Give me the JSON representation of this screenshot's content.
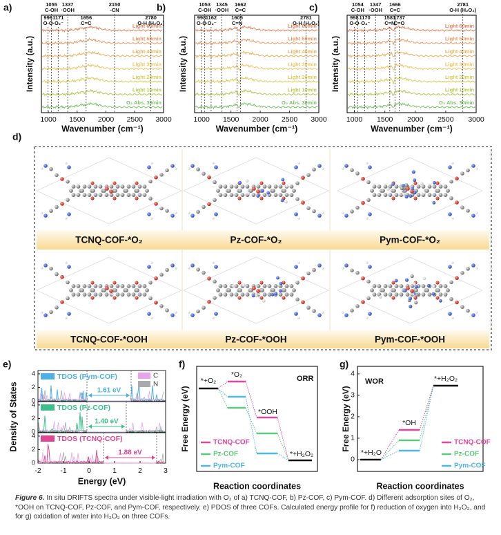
{
  "panels": {
    "a": {
      "label": "a)",
      "peaks": [
        {
          "wn": 996,
          "name": "O-O"
        },
        {
          "wn": 1055,
          "name": "C-OH"
        },
        {
          "wn": 1171,
          "name": "·O₂⁻"
        },
        {
          "wn": 1337,
          "name": "·OOH"
        },
        {
          "wn": 1656,
          "name": "C=C"
        },
        {
          "wn": 2150,
          "name": "-CN"
        },
        {
          "wn": 2780,
          "name": "O-H (H₂O₂)"
        }
      ]
    },
    "b": {
      "label": "b)",
      "peaks": [
        {
          "wn": 998,
          "name": "O-O"
        },
        {
          "wn": 1053,
          "name": "C-OH"
        },
        {
          "wn": 1162,
          "name": "·O₂⁻"
        },
        {
          "wn": 1345,
          "name": "·OOH"
        },
        {
          "wn": 1605,
          "name": "C=N"
        },
        {
          "wn": 1662,
          "name": "C=C"
        },
        {
          "wn": 2781,
          "name": "O-H (H₂O₂)"
        }
      ]
    },
    "c": {
      "label": "c)",
      "peaks": [
        {
          "wn": 998,
          "name": "O-O"
        },
        {
          "wn": 1054,
          "name": "C-OH"
        },
        {
          "wn": 1170,
          "name": "·O₂⁻"
        },
        {
          "wn": 1347,
          "name": "·OOH"
        },
        {
          "wn": 1581,
          "name": "C=N"
        },
        {
          "wn": 1666,
          "name": "C=C"
        },
        {
          "wn": 1737,
          "name": "C=O"
        },
        {
          "wn": 2781,
          "name": "O-H (H₂O₂)"
        }
      ]
    }
  },
  "spectra": {
    "ylabel": "Intensity (a.u.)",
    "xlabel": "Wavenumber (cm⁻¹)",
    "xlim": [
      880,
      3000
    ],
    "xticks": [
      1000,
      1500,
      2000,
      2500,
      3000
    ],
    "traces": [
      {
        "name": "Light 60min",
        "color": "#e9805e"
      },
      {
        "name": "Light 50min",
        "color": "#ed9966"
      },
      {
        "name": "Light 40min",
        "color": "#efb163"
      },
      {
        "name": "Light 30min",
        "color": "#eec462"
      },
      {
        "name": "Light 20min",
        "color": "#e0cb5a"
      },
      {
        "name": "Light 10min",
        "color": "#b5cb55"
      },
      {
        "name": "O₂ Abs. 30min",
        "color": "#78c468"
      }
    ]
  },
  "structures": {
    "label": "d)",
    "names": [
      "TCNQ-COF-*O₂",
      "Pz-COF-*O₂",
      "Pym-COF-*O₂",
      "TCNQ-COF-*OOH",
      "Pz-COF-*OOH",
      "Pym-COF-*OOH"
    ]
  },
  "pdos": {
    "label": "e)",
    "ylabel": "Density of States",
    "xlabel": "Energy (eV)",
    "xlim": [
      -2,
      3
    ],
    "xticks": [
      -2,
      -1,
      0,
      1,
      2,
      3
    ],
    "ylim": [
      0,
      4.5
    ],
    "yticks": [
      0,
      2,
      4
    ],
    "legend": [
      {
        "name": "C",
        "color": "#e9a3ea"
      },
      {
        "name": "N",
        "color": "#aaaaaa"
      }
    ],
    "subplots": [
      {
        "name": "TDOS (Pym-COF)",
        "gap": "1.61 eV",
        "color": "#4bb0e3"
      },
      {
        "name": "TDOS (Pz-COF)",
        "gap": "1.40 eV",
        "color": "#3cc08a"
      },
      {
        "name": "TDOS (TCNQ-COF)",
        "gap": "1.88 eV",
        "color": "#e0458f"
      }
    ]
  },
  "orr": {
    "label": "f)",
    "ylabel": "Free Energy (eV)",
    "xlabel": "Reaction coordinates",
    "tag": "ORR",
    "states": [
      "*+O₂",
      "*O₂",
      "*OOH",
      "*+H₂O₂"
    ],
    "series": [
      {
        "name": "TCNQ-COF",
        "color": "#e2479b"
      },
      {
        "name": "Pz-COF",
        "color": "#5cc97c"
      },
      {
        "name": "Pym-COF",
        "color": "#4fb6e6"
      }
    ]
  },
  "wor": {
    "label": "g)",
    "ylabel": "Free Energy (eV)",
    "xlabel": "Reaction coordinates",
    "tag": "WOR",
    "ylim": [
      -0.55,
      4.35
    ],
    "yticks": [
      0,
      1,
      2,
      3,
      4
    ],
    "states": [
      "*+H₂O",
      "*OH",
      "*+H₂O₂"
    ],
    "series": [
      {
        "name": "TCNQ-COF",
        "color": "#e2479b"
      },
      {
        "name": "Pz-COF",
        "color": "#5cc97c"
      },
      {
        "name": "Pym-COF",
        "color": "#4fb6e6"
      }
    ]
  },
  "caption": {
    "label": "Figure 6.",
    "text": "In situ DRIFTS spectra under visible-light irradiation with O₂ of a) TCNQ-COF, b) Pz-COF, c) Pym-COF. d) Different adsorption sites of O₂, *OOH on TCNQ-COF, Pz-COF, and Pym-COF, respectively. e) PDOS of three COFs. Calculated energy profile for f) reduction of oxygen into H₂O₂, and for g) oxidation of water into H₂O₂ on three COFs."
  }
}
